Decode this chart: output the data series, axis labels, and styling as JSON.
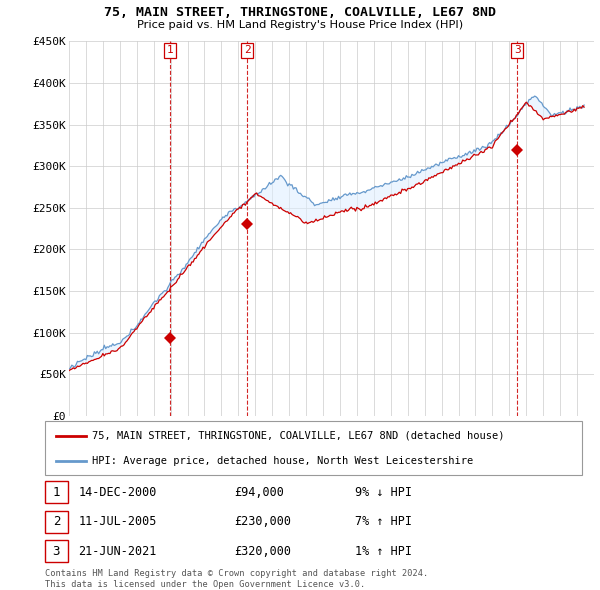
{
  "title": "75, MAIN STREET, THRINGSTONE, COALVILLE, LE67 8ND",
  "subtitle": "Price paid vs. HM Land Registry's House Price Index (HPI)",
  "ylim": [
    0,
    450000
  ],
  "yticks": [
    0,
    50000,
    100000,
    150000,
    200000,
    250000,
    300000,
    350000,
    400000,
    450000
  ],
  "ytick_labels": [
    "£0",
    "£50K",
    "£100K",
    "£150K",
    "£200K",
    "£250K",
    "£300K",
    "£350K",
    "£400K",
    "£450K"
  ],
  "x_start_year": 1995,
  "x_end_year": 2026,
  "legend_line1": "75, MAIN STREET, THRINGSTONE, COALVILLE, LE67 8ND (detached house)",
  "legend_line2": "HPI: Average price, detached house, North West Leicestershire",
  "transactions": [
    {
      "num": 1,
      "date": "14-DEC-2000",
      "price": "£94,000",
      "hpi": "9% ↓ HPI",
      "year": 2000.95
    },
    {
      "num": 2,
      "date": "11-JUL-2005",
      "price": "£230,000",
      "hpi": "7% ↑ HPI",
      "year": 2005.53
    },
    {
      "num": 3,
      "date": "21-JUN-2021",
      "price": "£320,000",
      "hpi": "1% ↑ HPI",
      "year": 2021.47
    }
  ],
  "transaction_values": [
    94000,
    230000,
    320000
  ],
  "footer": "Contains HM Land Registry data © Crown copyright and database right 2024.\nThis data is licensed under the Open Government Licence v3.0.",
  "red_color": "#cc0000",
  "blue_color": "#6699cc",
  "blue_fill": "#ddeeff"
}
